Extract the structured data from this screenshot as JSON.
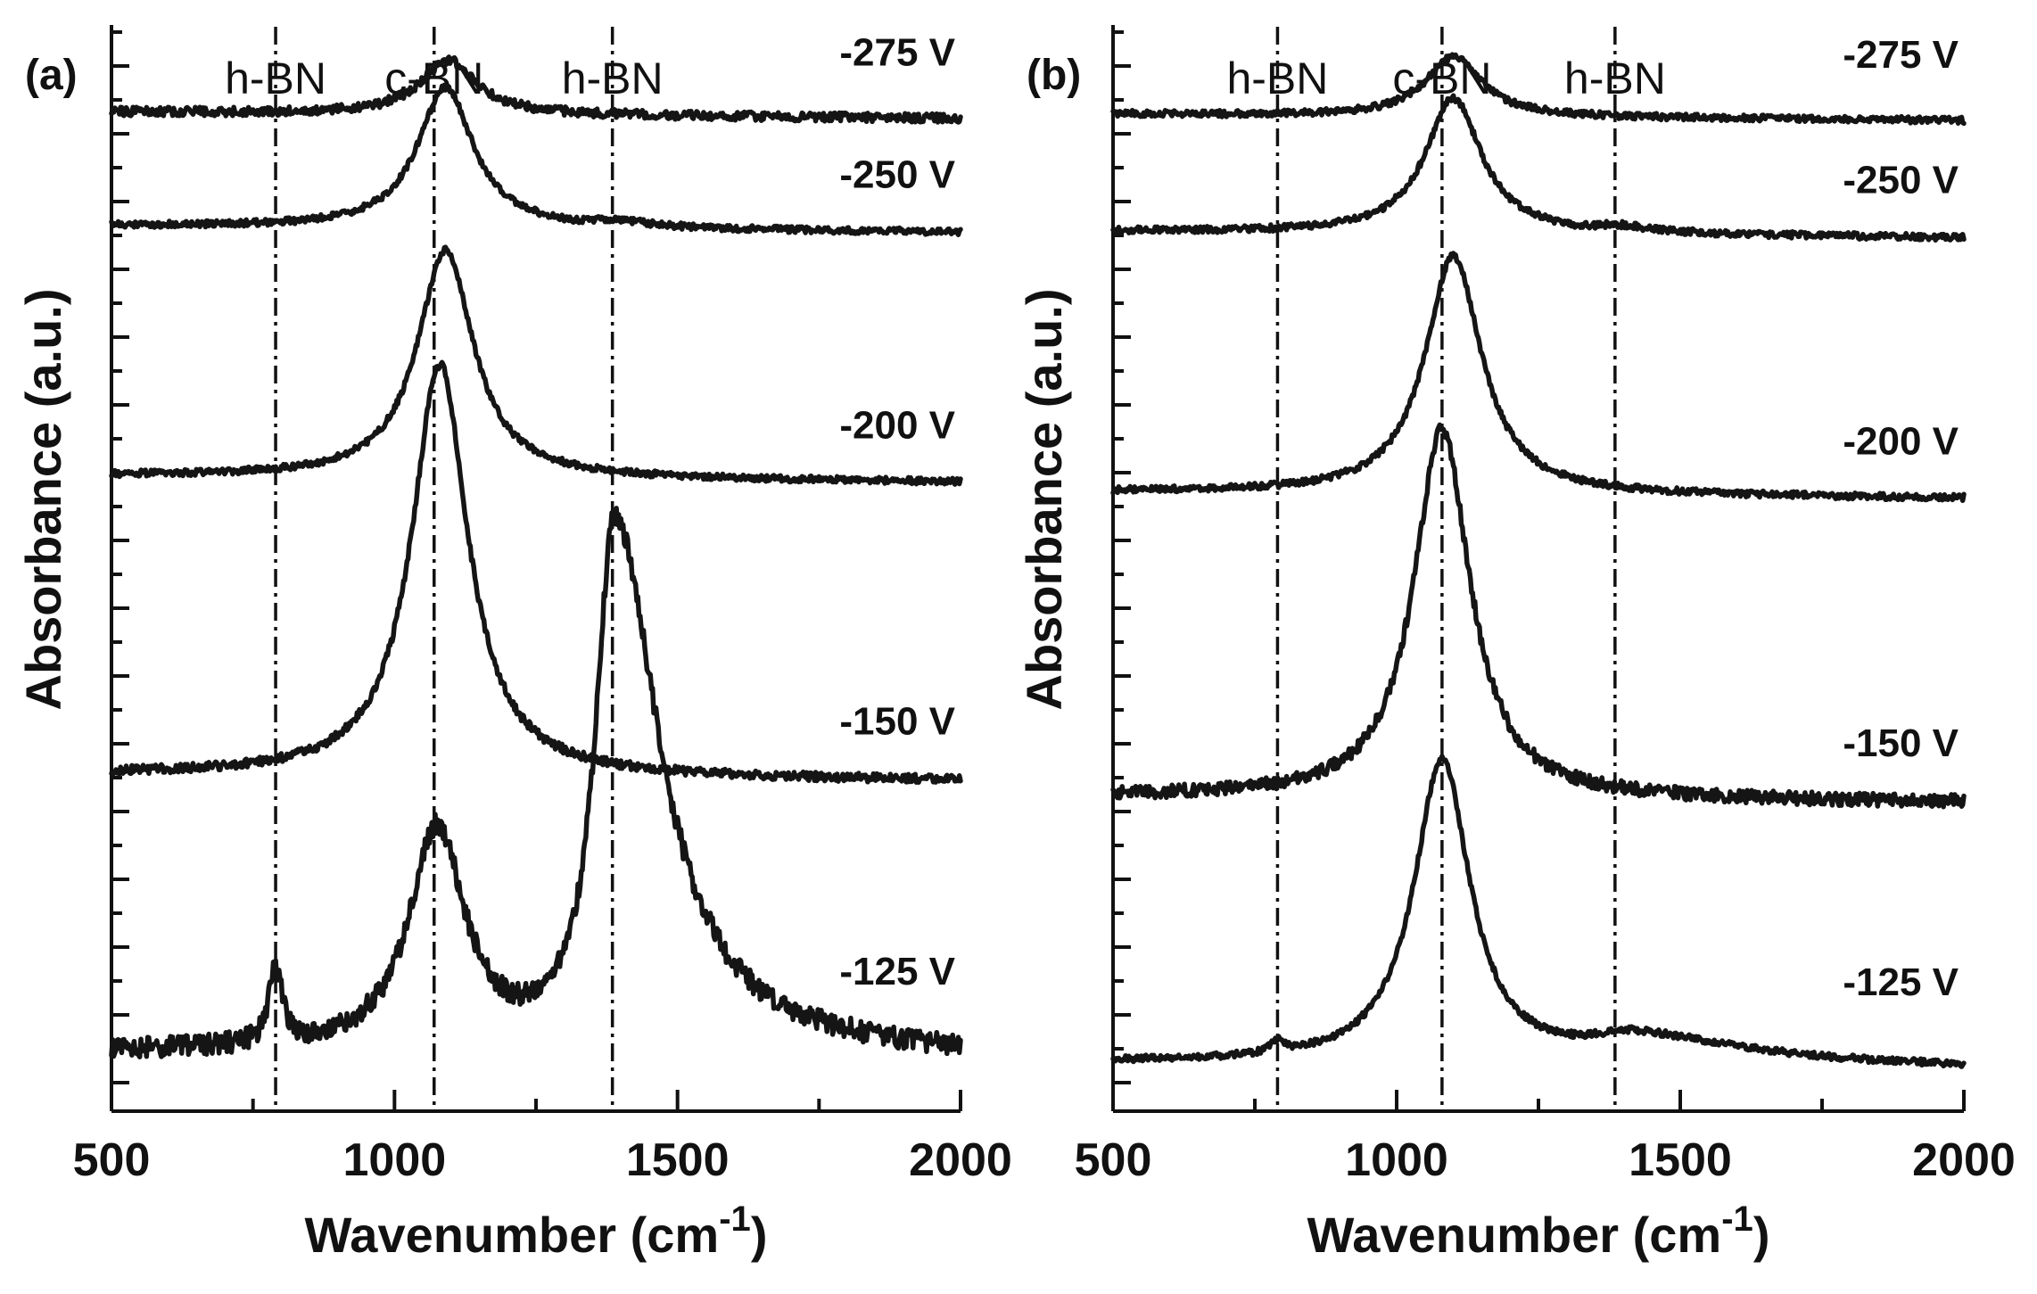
{
  "chart_data": [
    {
      "type": "line",
      "panel_label": "(a)",
      "xlabel": "Wavenumber (cm",
      "xlabel_superscript": "-1",
      "xlabel_suffix": ")",
      "ylabel": "Absorbance (a.u.)",
      "xlim": [
        500,
        2000
      ],
      "xticks": [
        "500",
        "1000",
        "1500",
        "2000"
      ],
      "reference_lines": [
        {
          "label": "h-BN",
          "x": 790
        },
        {
          "label": "c-BN",
          "x": 1070
        },
        {
          "label": "h-BN",
          "x": 1385
        }
      ],
      "series": [
        {
          "name": "-275 V",
          "offset": 0.92,
          "peaks": [
            {
              "x": 1095,
              "height": 0.05,
              "width": 60
            }
          ],
          "noise": 0.004
        },
        {
          "name": "-250 V",
          "offset": 0.815,
          "peaks": [
            {
              "x": 1090,
              "height": 0.13,
              "width": 60
            },
            {
              "x": 1385,
              "height": 0.005,
              "width": 30
            }
          ],
          "noise": 0.003
        },
        {
          "name": "-200 V",
          "offset": 0.585,
          "peaks": [
            {
              "x": 1090,
              "height": 0.21,
              "width": 60
            }
          ],
          "noise": 0.003
        },
        {
          "name": "-150 V",
          "offset": 0.31,
          "peaks": [
            {
              "x": 1080,
              "height": 0.38,
              "width": 60
            }
          ],
          "noise": 0.004
        },
        {
          "name": "-125 V",
          "offset": 0.055,
          "peaks": [
            {
              "x": 790,
              "height": 0.07,
              "width": 14
            },
            {
              "x": 1075,
              "height": 0.205,
              "width": 60
            },
            {
              "x": 1388,
              "height": 0.49,
              "width": 40
            }
          ],
          "noise": 0.01
        }
      ]
    },
    {
      "type": "line",
      "panel_label": "(b)",
      "xlabel": "Wavenumber (cm",
      "xlabel_superscript": "-1",
      "xlabel_suffix": ")",
      "ylabel": "Absorbance (a.u.)",
      "xlim": [
        500,
        2000
      ],
      "xticks": [
        "500",
        "1000",
        "1500",
        "2000"
      ],
      "reference_lines": [
        {
          "label": "h-BN",
          "x": 790
        },
        {
          "label": "c-BN",
          "x": 1080
        },
        {
          "label": "h-BN",
          "x": 1385
        }
      ],
      "series": [
        {
          "name": "-275 V",
          "offset": 0.918,
          "peaks": [
            {
              "x": 1100,
              "height": 0.055,
              "width": 60
            }
          ],
          "noise": 0.003
        },
        {
          "name": "-250 V",
          "offset": 0.81,
          "peaks": [
            {
              "x": 1100,
              "height": 0.125,
              "width": 60
            },
            {
              "x": 1385,
              "height": 0.005,
              "width": 30
            }
          ],
          "noise": 0.003
        },
        {
          "name": "-200 V",
          "offset": 0.57,
          "peaks": [
            {
              "x": 1100,
              "height": 0.22,
              "width": 60
            }
          ],
          "noise": 0.003
        },
        {
          "name": "-150 V",
          "offset": 0.29,
          "peaks": [
            {
              "x": 1080,
              "height": 0.34,
              "width": 60
            }
          ],
          "noise": 0.006
        },
        {
          "name": "-125 V",
          "offset": 0.045,
          "peaks": [
            {
              "x": 1080,
              "height": 0.28,
              "width": 60
            },
            {
              "x": 790,
              "height": 0.01,
              "width": 15
            },
            {
              "x": 1420,
              "height": 0.025,
              "width": 100
            }
          ],
          "noise": 0.003
        }
      ]
    }
  ]
}
